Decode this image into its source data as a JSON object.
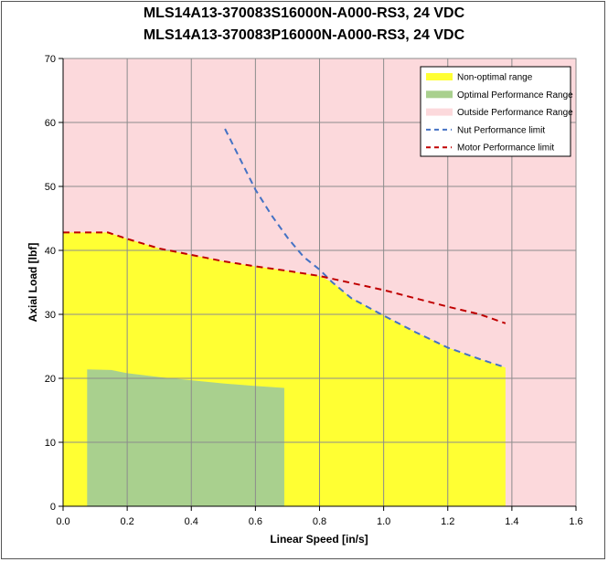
{
  "chart_data": {
    "type": "area",
    "title": "MLS14A13-370083S16000N-A000-RS3, 24 VDC",
    "subtitle": "MLS14A13-370083P16000N-A000-RS3, 24 VDC",
    "xlabel": "Linear Speed [in/s]",
    "ylabel": "Axial Load [lbf]",
    "xlim": [
      0,
      1.6
    ],
    "ylim": [
      0,
      70
    ],
    "x_ticks": [
      "0.0",
      "0.2",
      "0.4",
      "0.6",
      "0.8",
      "1.0",
      "1.2",
      "1.4",
      "1.6"
    ],
    "y_ticks": [
      "0",
      "10",
      "20",
      "30",
      "40",
      "50",
      "60",
      "70"
    ],
    "grid": true,
    "legend_position": "top-right",
    "series": [
      {
        "name": "Non-optimal range",
        "kind": "filled-area",
        "color": "#ffff33",
        "x": [
          0.0,
          0.14,
          0.2,
          0.3,
          0.4,
          0.5,
          0.6,
          0.7,
          0.8,
          0.84,
          0.9,
          1.0,
          1.1,
          1.2,
          1.3,
          1.38,
          1.38
        ],
        "y": [
          42.8,
          42.8,
          41.8,
          40.3,
          39.3,
          38.3,
          37.5,
          36.8,
          36.0,
          35.0,
          32.5,
          29.8,
          27.2,
          24.8,
          23.0,
          21.7,
          0
        ]
      },
      {
        "name": "Optimal Performance Range",
        "kind": "filled-area",
        "color": "#a9d08e",
        "x": [
          0.075,
          0.15,
          0.2,
          0.3,
          0.4,
          0.5,
          0.6,
          0.69,
          0.69
        ],
        "y": [
          21.4,
          21.3,
          20.8,
          20.2,
          19.7,
          19.2,
          18.8,
          18.5,
          0
        ]
      },
      {
        "name": "Outside Performance Range",
        "kind": "background",
        "color": "#fcd9dc"
      },
      {
        "name": "Nut Performance limit",
        "kind": "dashed-line",
        "color": "#4472c4",
        "x": [
          0.505,
          0.55,
          0.6,
          0.65,
          0.7,
          0.75,
          0.8,
          0.84,
          0.9,
          1.0,
          1.1,
          1.2,
          1.3,
          1.38
        ],
        "y": [
          59.0,
          54.5,
          49.5,
          45.5,
          42.0,
          39.0,
          37.0,
          35.0,
          32.5,
          29.8,
          27.2,
          24.8,
          23.0,
          21.7
        ]
      },
      {
        "name": "Motor Performance limit",
        "kind": "dashed-line",
        "color": "#c00000",
        "x": [
          0.0,
          0.14,
          0.2,
          0.3,
          0.4,
          0.5,
          0.6,
          0.7,
          0.8,
          0.9,
          1.0,
          1.1,
          1.2,
          1.3,
          1.38
        ],
        "y": [
          42.8,
          42.8,
          41.8,
          40.3,
          39.3,
          38.3,
          37.5,
          36.8,
          36.0,
          34.9,
          33.8,
          32.5,
          31.2,
          30.0,
          28.6
        ]
      }
    ]
  }
}
